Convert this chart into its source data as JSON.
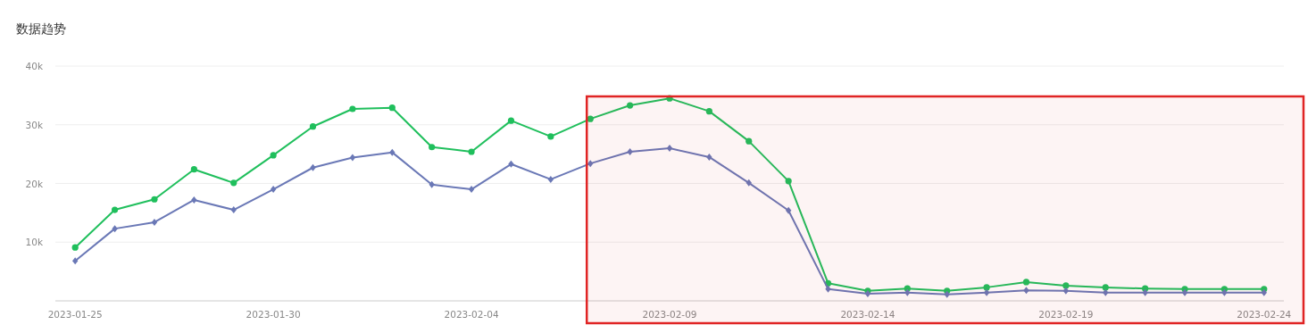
{
  "chart_data": {
    "type": "line",
    "title": "数据趋势",
    "x": [
      "2023-01-25",
      "2023-01-26",
      "2023-01-27",
      "2023-01-28",
      "2023-01-29",
      "2023-01-30",
      "2023-01-31",
      "2023-02-01",
      "2023-02-02",
      "2023-02-03",
      "2023-02-04",
      "2023-02-05",
      "2023-02-06",
      "2023-02-07",
      "2023-02-08",
      "2023-02-09",
      "2023-02-10",
      "2023-02-11",
      "2023-02-12",
      "2023-02-13",
      "2023-02-14",
      "2023-02-15",
      "2023-02-16",
      "2023-02-17",
      "2023-02-18",
      "2023-02-19",
      "2023-02-20",
      "2023-02-21",
      "2023-02-22",
      "2023-02-23",
      "2023-02-24"
    ],
    "series": [
      {
        "color": "#1fbf5c",
        "marker": "circle",
        "values": [
          9100,
          15500,
          17300,
          22400,
          20100,
          24800,
          29700,
          32700,
          32900,
          26200,
          25400,
          30700,
          28000,
          31000,
          33300,
          34500,
          32300,
          27200,
          20400,
          3000,
          1700,
          2100,
          1700,
          2300,
          3200,
          2600,
          2300,
          2100,
          2000,
          2000,
          2000
        ]
      },
      {
        "color": "#6a78b6",
        "marker": "diamond",
        "values": [
          6800,
          12300,
          13400,
          17200,
          15500,
          19000,
          22700,
          24400,
          25300,
          19800,
          19000,
          23300,
          20700,
          23400,
          25400,
          26000,
          24500,
          20100,
          15400,
          2000,
          1200,
          1400,
          1100,
          1400,
          1800,
          1700,
          1400,
          1400,
          1400,
          1400,
          1400
        ]
      }
    ],
    "xlim": [
      "2023-01-24T12:00",
      "2023-02-24T12:00"
    ],
    "xticks": [
      "2023-01-25",
      "2023-01-30",
      "2023-02-04",
      "2023-02-09",
      "2023-02-14",
      "2023-02-19",
      "2023-02-24"
    ],
    "ylim": [
      0,
      40000
    ],
    "yticks": [
      {
        "value": 0,
        "label": null
      },
      {
        "value": 10000,
        "label": "10k"
      },
      {
        "value": 20000,
        "label": "20k"
      },
      {
        "value": 30000,
        "label": "30k"
      },
      {
        "value": 40000,
        "label": "40k"
      }
    ],
    "grid": "y",
    "line_style": "solid",
    "bands": [
      {
        "axis": "x",
        "from": "2023-02-07",
        "to": "2023-02-24T12:00",
        "color": "#e02424"
      }
    ]
  }
}
